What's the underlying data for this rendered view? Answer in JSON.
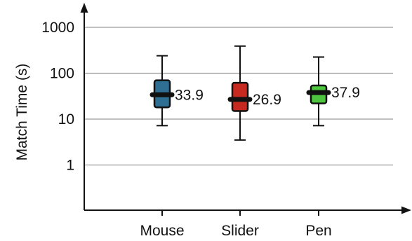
{
  "chart_data": {
    "type": "box",
    "title": "",
    "xlabel": "",
    "ylabel": "Match Time (s)",
    "yscale": "log",
    "ylim": [
      0.2,
      1000
    ],
    "yticks": [
      {
        "value": 1,
        "label": "1"
      },
      {
        "value": 10,
        "label": "10"
      },
      {
        "value": 100,
        "label": "100"
      },
      {
        "value": 1000,
        "label": "1000"
      }
    ],
    "grid": true,
    "categories": [
      "Mouse",
      "Slider",
      "Pen"
    ],
    "boxes": [
      {
        "category": "Mouse",
        "min": 7.2,
        "q1": 18,
        "median": 33.9,
        "q3": 70,
        "max": 240,
        "median_label": "33.9",
        "color": "#2e6f93"
      },
      {
        "category": "Slider",
        "min": 3.5,
        "q1": 15,
        "median": 26.9,
        "q3": 62,
        "max": 390,
        "median_label": "26.9",
        "color": "#c7281f"
      },
      {
        "category": "Pen",
        "min": 7.2,
        "q1": 22,
        "median": 37.9,
        "q3": 54,
        "max": 225,
        "median_label": "37.9",
        "color": "#4ec53f"
      }
    ]
  }
}
